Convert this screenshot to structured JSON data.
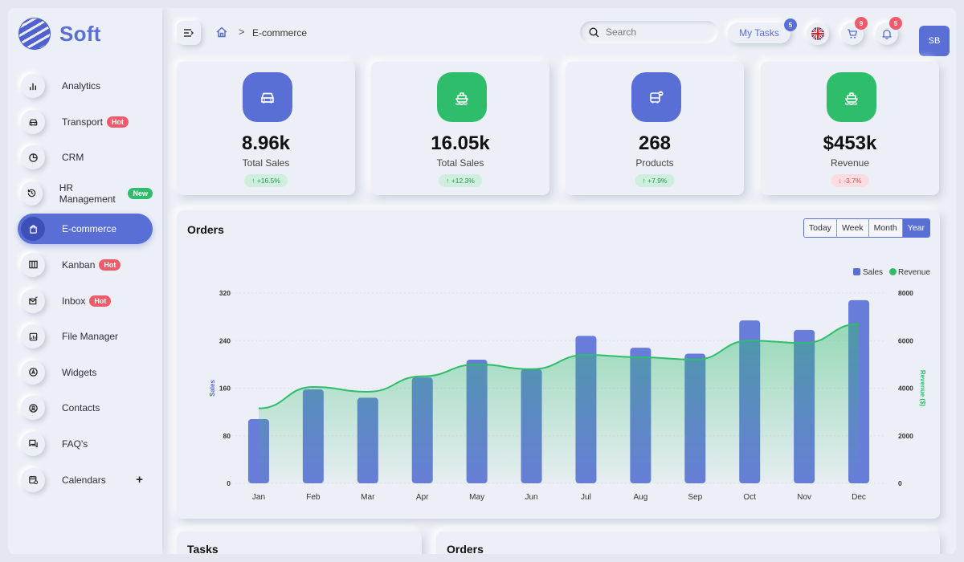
{
  "brand": {
    "name": "Soft"
  },
  "sidebar": {
    "items": [
      {
        "label": "Analytics",
        "icon": "bar-chart-icon",
        "badge": "",
        "active": false
      },
      {
        "label": "Transport",
        "icon": "car-icon",
        "badge": "Hot",
        "active": false
      },
      {
        "label": "CRM",
        "icon": "pie-chart-icon",
        "badge": "",
        "active": false
      },
      {
        "label": "HR Management",
        "icon": "history-icon",
        "badge": "New",
        "active": false
      },
      {
        "label": "E-commerce",
        "icon": "bag-icon",
        "badge": "",
        "active": true
      },
      {
        "label": "Kanban",
        "icon": "columns-icon",
        "badge": "Hot",
        "active": false
      },
      {
        "label": "Inbox",
        "icon": "envelope-icon",
        "badge": "Hot",
        "active": false
      },
      {
        "label": "File Manager",
        "icon": "file-icon",
        "badge": "",
        "active": false
      },
      {
        "label": "Widgets",
        "icon": "widget-icon",
        "badge": "",
        "active": false
      },
      {
        "label": "Contacts",
        "icon": "contact-icon",
        "badge": "",
        "active": false
      },
      {
        "label": "FAQ's",
        "icon": "chat-icon",
        "badge": "",
        "active": false
      },
      {
        "label": "Calendars",
        "icon": "calendar-icon",
        "badge": "",
        "active": false,
        "expand": "+"
      }
    ]
  },
  "header": {
    "breadcrumb_current": "E-commerce",
    "breadcrumb_sep": ">",
    "search_placeholder": "Search",
    "my_tasks_label": "My Tasks",
    "my_tasks_count": "5",
    "cart_count": "9",
    "notif_count": "5",
    "avatar_initials": "SB"
  },
  "stats": [
    {
      "value": "8.96k",
      "label": "Total Sales",
      "trend": "+16.5%",
      "dir": "up",
      "color": "#5a6fd6",
      "icon": "car-icon"
    },
    {
      "value": "16.05k",
      "label": "Total Sales",
      "trend": "+12.3%",
      "dir": "up",
      "color": "#2ebd6b",
      "icon": "ship-icon"
    },
    {
      "value": "268",
      "label": "Products",
      "trend": "+7.9%",
      "dir": "up",
      "color": "#5a6fd6",
      "icon": "bus-icon"
    },
    {
      "value": "$453k",
      "label": "Revenue",
      "trend": "-3.7%",
      "dir": "down",
      "color": "#2ebd6b",
      "icon": "ship-icon"
    }
  ],
  "orders": {
    "title": "Orders",
    "ranges": [
      "Today",
      "Week",
      "Month",
      "Year"
    ],
    "selected_range": "Year"
  },
  "chart_data": {
    "type": "bar",
    "categories": [
      "Jan",
      "Feb",
      "Mar",
      "Apr",
      "May",
      "Jun",
      "Jul",
      "Aug",
      "Sep",
      "Oct",
      "Nov",
      "Dec"
    ],
    "series": [
      {
        "name": "Sales",
        "type": "bar",
        "axis": "left",
        "color": "#5a6fd6",
        "values": [
          108,
          158,
          144,
          178,
          208,
          192,
          248,
          228,
          218,
          274,
          258,
          308
        ]
      },
      {
        "name": "Revenue",
        "type": "area",
        "axis": "right",
        "color": "#2ebd6b",
        "values": [
          3150,
          4050,
          3850,
          4500,
          5000,
          4800,
          5400,
          5300,
          5200,
          6000,
          5900,
          6700
        ]
      }
    ],
    "ylabel": "Sales",
    "y2label": "Revenue ($)",
    "ylim": [
      0,
      320
    ],
    "y2lim": [
      0,
      8000
    ],
    "yticks": [
      0,
      80,
      160,
      240,
      320
    ],
    "y2ticks": [
      0,
      2000,
      4000,
      6000,
      8000
    ],
    "legend": "top-right"
  },
  "bottom": {
    "left_title": "Tasks",
    "right_title": "Orders"
  }
}
